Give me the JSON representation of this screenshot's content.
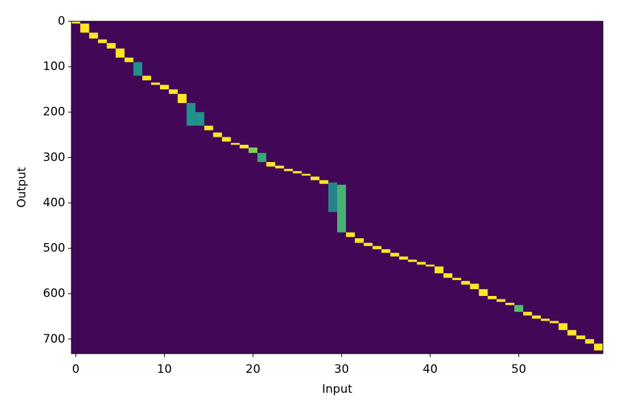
{
  "chart_data": {
    "type": "heatmap",
    "xlabel": "Input",
    "ylabel": "Output",
    "xlim": [
      -0.5,
      59.5
    ],
    "ylim": [
      732,
      0
    ],
    "xticks": [
      0,
      10,
      20,
      30,
      40,
      50
    ],
    "yticks": [
      0,
      100,
      200,
      300,
      400,
      500,
      600,
      700
    ],
    "colormap": [
      "#440154",
      "#3b528b",
      "#21918c",
      "#5ec962",
      "#fde725"
    ],
    "background": 0.02,
    "x": [
      0,
      1,
      2,
      3,
      4,
      5,
      6,
      7,
      8,
      9,
      10,
      11,
      12,
      13,
      14,
      15,
      16,
      17,
      18,
      19,
      20,
      21,
      22,
      23,
      24,
      25,
      26,
      27,
      28,
      29,
      30,
      31,
      32,
      33,
      34,
      35,
      36,
      37,
      38,
      39,
      40,
      41,
      42,
      43,
      44,
      45,
      46,
      47,
      48,
      49,
      50,
      51,
      52,
      53,
      54,
      55,
      56,
      57,
      58,
      59
    ],
    "start": [
      0,
      5,
      25,
      40,
      48,
      60,
      80,
      90,
      120,
      135,
      140,
      150,
      160,
      180,
      200,
      230,
      245,
      255,
      268,
      272,
      278,
      290,
      310,
      318,
      325,
      330,
      336,
      342,
      350,
      355,
      360,
      465,
      478,
      488,
      495,
      502,
      510,
      518,
      525,
      530,
      536,
      540,
      555,
      565,
      572,
      578,
      590,
      605,
      612,
      620,
      625,
      640,
      648,
      655,
      660,
      665,
      680,
      692,
      700,
      710
    ],
    "end": [
      5,
      25,
      38,
      48,
      60,
      80,
      90,
      120,
      130,
      140,
      150,
      160,
      180,
      230,
      230,
      240,
      255,
      265,
      272,
      280,
      290,
      310,
      320,
      324,
      330,
      335,
      340,
      350,
      358,
      420,
      465,
      475,
      488,
      495,
      502,
      510,
      518,
      525,
      530,
      536,
      540,
      555,
      565,
      570,
      580,
      590,
      605,
      612,
      618,
      625,
      640,
      648,
      655,
      660,
      665,
      680,
      692,
      700,
      710,
      725
    ],
    "values": [
      1,
      1,
      1,
      1,
      1,
      1,
      1,
      0.5,
      1,
      1,
      1,
      1,
      1,
      0.5,
      0.5,
      1,
      1,
      1,
      1,
      1,
      0.8,
      0.6,
      1,
      1,
      1,
      1,
      1,
      1,
      1,
      0.45,
      0.65,
      1,
      1,
      1,
      1,
      1,
      1,
      1,
      1,
      1,
      1,
      1,
      1,
      1,
      1,
      1,
      1,
      1,
      1,
      1,
      0.7,
      1,
      1,
      1,
      1,
      1,
      1,
      1,
      1,
      1
    ]
  }
}
